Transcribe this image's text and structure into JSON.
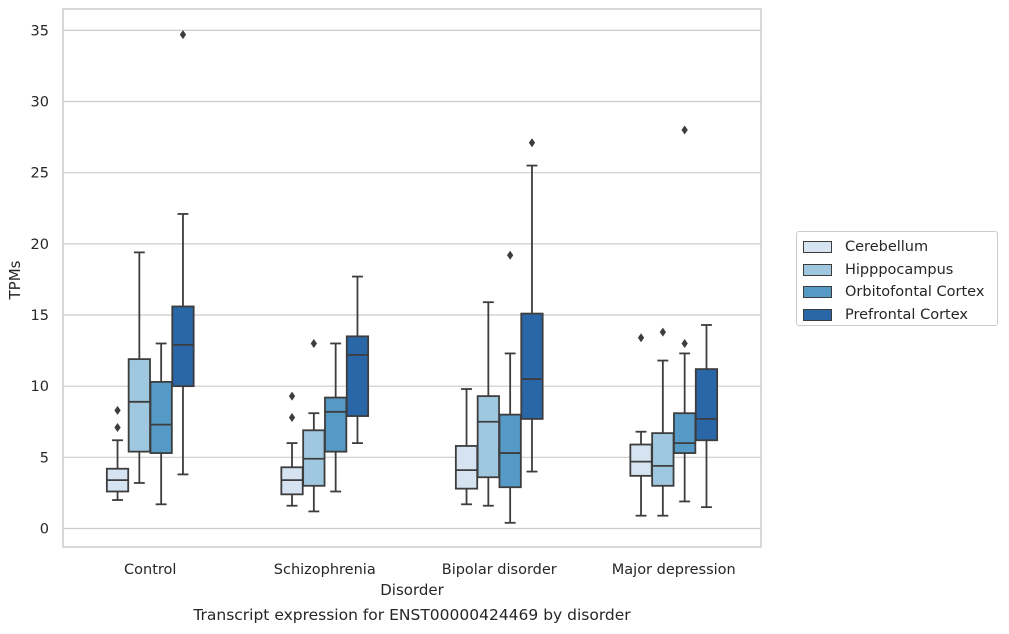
{
  "chart_data": {
    "type": "box",
    "xlabel": "Disorder",
    "ylabel": "TPMs",
    "caption": "Transcript expression for ENST00000424469 by disorder",
    "ylim": [
      -1.3,
      36.5
    ],
    "yticks": [
      0,
      5,
      10,
      15,
      20,
      25,
      30,
      35
    ],
    "grid": "horizontal",
    "legend_position": "right",
    "categories": [
      "Control",
      "Schizophrenia",
      "Bipolar disorder",
      "Major depression"
    ],
    "series": [
      {
        "name": "Cerebellum",
        "color": "#d6e4f2",
        "boxes": [
          {
            "whisker_low": 2.0,
            "q1": 2.6,
            "median": 3.4,
            "q3": 4.2,
            "whisker_high": 6.2,
            "outliers": [
              7.1,
              8.3
            ]
          },
          {
            "whisker_low": 1.6,
            "q1": 2.4,
            "median": 3.4,
            "q3": 4.3,
            "whisker_high": 6.0,
            "outliers": [
              7.8,
              9.3
            ]
          },
          {
            "whisker_low": 1.7,
            "q1": 2.8,
            "median": 4.1,
            "q3": 5.8,
            "whisker_high": 9.8,
            "outliers": []
          },
          {
            "whisker_low": 0.9,
            "q1": 3.7,
            "median": 4.7,
            "q3": 5.9,
            "whisker_high": 6.8,
            "outliers": [
              13.4
            ]
          }
        ]
      },
      {
        "name": "Hipppocampus",
        "color": "#9fc8e0",
        "boxes": [
          {
            "whisker_low": 3.2,
            "q1": 5.4,
            "median": 8.9,
            "q3": 11.9,
            "whisker_high": 19.4,
            "outliers": []
          },
          {
            "whisker_low": 1.2,
            "q1": 3.0,
            "median": 4.9,
            "q3": 6.9,
            "whisker_high": 8.1,
            "outliers": [
              13.0
            ]
          },
          {
            "whisker_low": 1.6,
            "q1": 3.6,
            "median": 7.5,
            "q3": 9.3,
            "whisker_high": 15.9,
            "outliers": []
          },
          {
            "whisker_low": 0.9,
            "q1": 3.0,
            "median": 4.4,
            "q3": 6.7,
            "whisker_high": 11.8,
            "outliers": [
              13.8
            ]
          }
        ]
      },
      {
        "name": "Orbitofontal Cortex",
        "color": "#5599c7",
        "boxes": [
          {
            "whisker_low": 1.7,
            "q1": 5.3,
            "median": 7.3,
            "q3": 10.3,
            "whisker_high": 13.0,
            "outliers": []
          },
          {
            "whisker_low": 2.6,
            "q1": 5.4,
            "median": 8.2,
            "q3": 9.2,
            "whisker_high": 13.0,
            "outliers": []
          },
          {
            "whisker_low": 0.4,
            "q1": 2.9,
            "median": 5.3,
            "q3": 8.0,
            "whisker_high": 12.3,
            "outliers": [
              19.2
            ]
          },
          {
            "whisker_low": 1.9,
            "q1": 5.3,
            "median": 6.0,
            "q3": 8.1,
            "whisker_high": 12.3,
            "outliers": [
              13.0,
              28.0
            ]
          }
        ]
      },
      {
        "name": "Prefrontal Cortex",
        "color": "#2a67a9",
        "boxes": [
          {
            "whisker_low": 3.8,
            "q1": 10.0,
            "median": 12.9,
            "q3": 15.6,
            "whisker_high": 22.1,
            "outliers": [
              34.7
            ]
          },
          {
            "whisker_low": 6.0,
            "q1": 7.9,
            "median": 12.2,
            "q3": 13.5,
            "whisker_high": 17.7,
            "outliers": []
          },
          {
            "whisker_low": 4.0,
            "q1": 7.7,
            "median": 10.5,
            "q3": 15.1,
            "whisker_high": 25.5,
            "outliers": [
              27.1
            ]
          },
          {
            "whisker_low": 1.5,
            "q1": 6.2,
            "median": 7.7,
            "q3": 11.2,
            "whisker_high": 14.3,
            "outliers": []
          }
        ]
      }
    ]
  }
}
